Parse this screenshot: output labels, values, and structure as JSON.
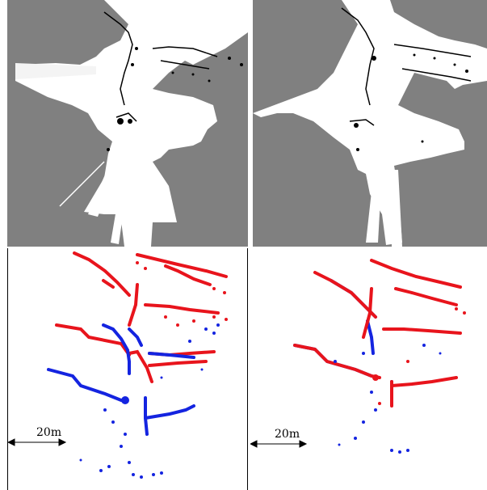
{
  "panels": {
    "top_left": {
      "kind": "occupancy-grid-map"
    },
    "top_right": {
      "kind": "occupancy-grid-map"
    },
    "bottom_left": {
      "kind": "scan-overlay",
      "scale_label": "20m"
    },
    "bottom_right": {
      "kind": "scan-overlay",
      "scale_label": "20m"
    }
  },
  "colors": {
    "unknown": "#808080",
    "free": "#ffffff",
    "reference_scan": "#e8141c",
    "aligned_scan": "#1424e0"
  }
}
